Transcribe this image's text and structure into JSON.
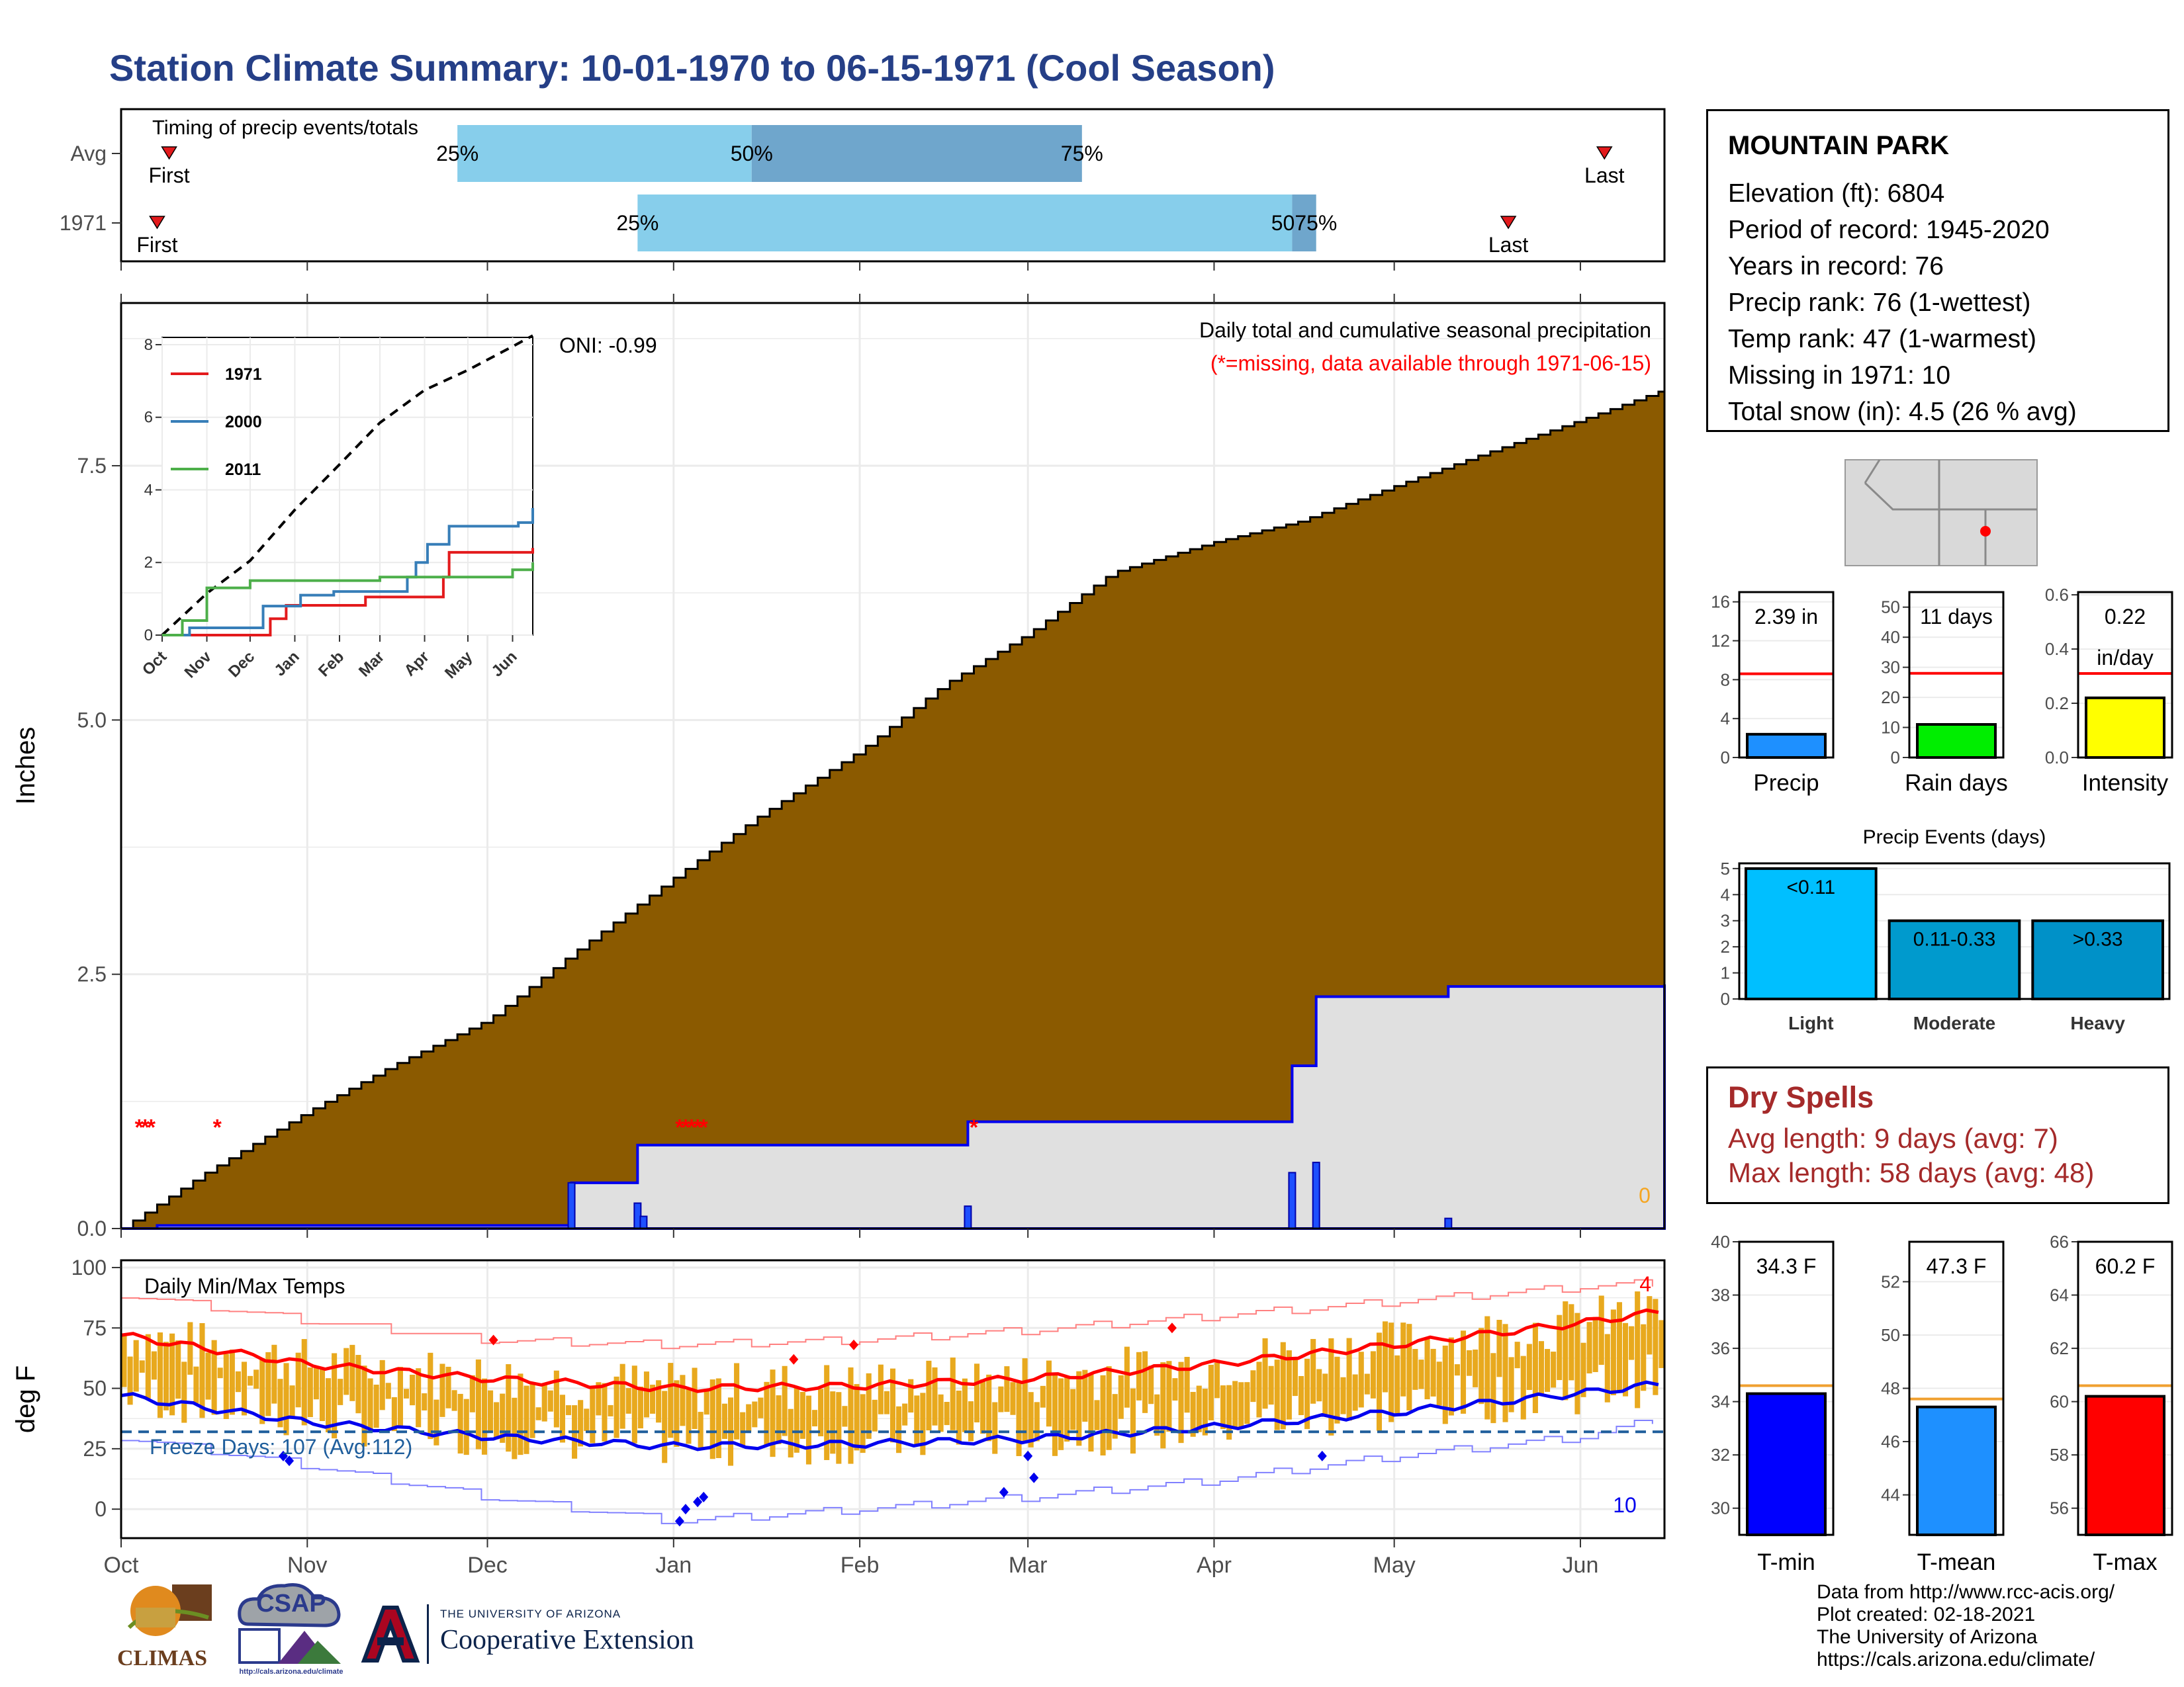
{
  "title": "Station Climate Summary: 10-01-1970 to 06-15-1971 (Cool Season)",
  "station": {
    "name": "MOUNTAIN PARK",
    "lines": [
      "Elevation (ft): 6804",
      "Period of record: 1945-2020",
      "Years in record: 76",
      "Precip rank: 76 (1-wettest)",
      "Temp rank: 47 (1-warmest)",
      "Missing in 1971: 10",
      "Total snow (in): 4.5 (26 % avg)"
    ]
  },
  "dry_spells": {
    "title": "Dry Spells",
    "avg_length": "Avg length: 9 days (avg: 7)",
    "max_length": "Max length: 58 days (avg: 48)"
  },
  "credits": [
    "Data from http://www.rcc-acis.org/",
    "Plot created: 02-18-2021",
    "The University of Arizona",
    "https://cals.arizona.edu/climate/"
  ],
  "logos": {
    "climas": "CLIMAS",
    "csap": "CSAP",
    "csap_url": "http://cals.arizona.edu/climate",
    "ua_small": "THE UNIVERSITY OF ARIZONA",
    "ua_big": "Cooperative Extension"
  },
  "chart_data": [
    {
      "id": "timing",
      "type": "bar",
      "title": "Timing of precip events/totals",
      "rows": [
        {
          "label": "Avg",
          "first": "Oct 9",
          "p25": "Nov 26",
          "p50": "Jan 14",
          "p75": "Mar 10",
          "last": "Jun 5"
        },
        {
          "label": "1971",
          "first": "Oct 7",
          "p25": "Dec 26",
          "p50": "Apr 14",
          "p75": "Apr 18",
          "last": "May 20"
        }
      ],
      "text": {
        "first": "First",
        "last": "Last",
        "p25": "25%",
        "p50": "50%",
        "p75": "75%",
        "p5075": "5075%"
      },
      "colors": {
        "light": "#87ceeb",
        "dark": "#6fa6cc",
        "marker": "#e31a1c"
      }
    },
    {
      "id": "precip",
      "type": "area",
      "ylabel": "Inches",
      "yticks": [
        "0.0",
        "2.5",
        "5.0",
        "7.5"
      ],
      "ylim": [
        0,
        9.1
      ],
      "xticks": [
        "Oct",
        "Nov",
        "Dec",
        "Jan",
        "Feb",
        "Mar",
        "Apr",
        "May",
        "Jun"
      ],
      "annotation": "Daily total and cumulative seasonal precipitation",
      "missing_note": "(*=missing, data available through 1971-06-15)",
      "oni": "ONI: -0.99",
      "corner_value": "0",
      "average_cumulative": {
        "x": [
          "Oct 1",
          "Oct 15",
          "Nov 1",
          "Nov 15",
          "Dec 1",
          "Dec 15",
          "Jan 1",
          "Jan 15",
          "Feb 1",
          "Feb 15",
          "Mar 1",
          "Mar 15",
          "Apr 1",
          "Apr 15",
          "May 1",
          "May 15",
          "Jun 1",
          "Jun 15"
        ],
        "y": [
          0,
          0.55,
          1.15,
          1.6,
          2.05,
          2.7,
          3.45,
          4.05,
          4.7,
          5.35,
          5.85,
          6.45,
          6.75,
          6.95,
          7.3,
          7.6,
          7.95,
          8.25
        ]
      },
      "observed_cumulative": {
        "x": [
          "Oct 1",
          "Oct 7",
          "Dec 15",
          "Dec 26",
          "Feb 19",
          "Apr 14",
          "Apr 18",
          "May 10",
          "Jun 15"
        ],
        "y": [
          0,
          0.03,
          0.45,
          0.82,
          1.05,
          1.6,
          2.28,
          2.38,
          2.4
        ]
      },
      "daily_bars": [
        {
          "x": "Dec 15",
          "y": 0.45
        },
        {
          "x": "Dec 26",
          "y": 0.25
        },
        {
          "x": "Dec 27",
          "y": 0.12
        },
        {
          "x": "Feb 19",
          "y": 0.22
        },
        {
          "x": "Apr 14",
          "y": 0.55
        },
        {
          "x": "Apr 18",
          "y": 0.65
        },
        {
          "x": "May 10",
          "y": 0.1
        }
      ],
      "missing_dates": [
        "Oct 4",
        "Oct 5",
        "Oct 6",
        "Oct 17",
        "Jan 2",
        "Jan 3",
        "Jan 4",
        "Jan 5",
        "Jan 6",
        "Feb 20"
      ],
      "colors": {
        "avg_fill": "#8b5a00",
        "obs_fill": "#e0e0e0",
        "obs_line": "#0000ee",
        "missing": "#ff0000"
      }
    },
    {
      "id": "inset",
      "type": "line",
      "yticks": [
        "0",
        "2",
        "4",
        "6",
        "8"
      ],
      "ylim": [
        0,
        8.2
      ],
      "xticks": [
        "Oct",
        "Nov",
        "Dec",
        "Jan",
        "Feb",
        "Mar",
        "Apr",
        "May",
        "Jun"
      ],
      "series": [
        {
          "name": "1971",
          "color": "#e31a1c",
          "x": [
            "Oct 1",
            "Dec 15",
            "Dec 26",
            "Feb 19",
            "Apr 14",
            "Apr 18",
            "Jun 15"
          ],
          "y": [
            0,
            0.45,
            0.82,
            1.05,
            1.6,
            2.28,
            2.4
          ]
        },
        {
          "name": "2000",
          "color": "#377eb8",
          "x": [
            "Oct 1",
            "Oct 20",
            "Dec 10",
            "Jan 5",
            "Jan 28",
            "Mar 20",
            "Mar 26",
            "Apr 3",
            "Apr 18",
            "Jun 5",
            "Jun 15"
          ],
          "y": [
            0,
            0.2,
            0.8,
            1.1,
            1.2,
            1.6,
            2.0,
            2.5,
            3.0,
            3.1,
            3.5
          ]
        },
        {
          "name": "2011",
          "color": "#4daf4a",
          "x": [
            "Oct 1",
            "Oct 15",
            "Nov 1",
            "Dec 1",
            "Jan 1",
            "Feb 1",
            "Mar 1",
            "Apr 1",
            "May 1",
            "Jun 1",
            "Jun 15"
          ],
          "y": [
            0,
            0.4,
            1.3,
            1.5,
            1.5,
            1.5,
            1.6,
            1.6,
            1.6,
            1.8,
            2.0
          ]
        }
      ],
      "average": {
        "x": [
          "Oct 1",
          "Nov 1",
          "Dec 1",
          "Jan 1",
          "Feb 1",
          "Mar 1",
          "Apr 1",
          "May 1",
          "Jun 1",
          "Jun 15"
        ],
        "y": [
          0,
          1.15,
          2.05,
          3.45,
          4.7,
          5.85,
          6.75,
          7.3,
          7.95,
          8.25
        ]
      }
    },
    {
      "id": "temps",
      "type": "line",
      "title": "Daily Min/Max Temps",
      "ylabel": "deg F",
      "yticks": [
        "0",
        "25",
        "50",
        "75",
        "100"
      ],
      "ylim": [
        -12,
        103
      ],
      "xticks": [
        "Oct",
        "Nov",
        "Dec",
        "Jan",
        "Feb",
        "Mar",
        "Apr",
        "May",
        "Jun"
      ],
      "freeze_label": "Freeze Days: 107 (Avg:112)",
      "freeze_line": 32,
      "count_high": "4",
      "count_low": "10",
      "normal_max": {
        "x": [
          "Oct 1",
          "Nov 1",
          "Dec 1",
          "Jan 1",
          "Feb 1",
          "Mar 1",
          "Apr 1",
          "May 1",
          "Jun 1",
          "Jun 15"
        ],
        "y": [
          72,
          60,
          54,
          50,
          51,
          54,
          60,
          68,
          77,
          82
        ]
      },
      "normal_min": {
        "x": [
          "Oct 1",
          "Nov 1",
          "Dec 1",
          "Jan 1",
          "Feb 1",
          "Mar 1",
          "Apr 1",
          "May 1",
          "Jun 1",
          "Jun 15"
        ],
        "y": [
          47,
          36,
          30,
          26,
          27,
          29,
          34,
          40,
          48,
          52
        ]
      },
      "record_max": {
        "x": [
          "Oct 1",
          "Nov 1",
          "Dec 1",
          "Jan 1",
          "Feb 1",
          "Mar 1",
          "Apr 1",
          "May 1",
          "Jun 1",
          "Jun 15"
        ],
        "y": [
          89,
          78,
          70,
          68,
          70,
          74,
          80,
          86,
          92,
          94
        ]
      },
      "record_min": {
        "x": [
          "Oct 1",
          "Nov 1",
          "Dec 1",
          "Jan 1",
          "Feb 1",
          "Mar 1",
          "Apr 1",
          "May 1",
          "Jun 1",
          "Jun 15"
        ],
        "y": [
          30,
          18,
          5,
          -5,
          0,
          5,
          12,
          22,
          30,
          38
        ]
      },
      "daily_max_range": [
        50,
        80
      ],
      "daily_min_range": [
        20,
        50
      ],
      "record_high_days": [
        {
          "x": "Dec 2",
          "y": 70
        },
        {
          "x": "Jan 21",
          "y": 62
        },
        {
          "x": "Jan 31",
          "y": 68
        },
        {
          "x": "Mar 25",
          "y": 75
        }
      ],
      "record_low_days": [
        {
          "x": "Oct 28",
          "y": 22
        },
        {
          "x": "Oct 29",
          "y": 20
        },
        {
          "x": "Jan 2",
          "y": -5
        },
        {
          "x": "Jan 3",
          "y": 0
        },
        {
          "x": "Jan 5",
          "y": 3
        },
        {
          "x": "Jan 6",
          "y": 5
        },
        {
          "x": "Feb 25",
          "y": 7
        },
        {
          "x": "Mar 1",
          "y": 22
        },
        {
          "x": "Mar 2",
          "y": 13
        },
        {
          "x": "Apr 19",
          "y": 22
        }
      ],
      "colors": {
        "bar": "#e8a91e",
        "max": "#ff0000",
        "min": "#0000ee",
        "freeze": "#1f5e9c"
      }
    },
    {
      "id": "precip-totals",
      "type": "bar",
      "panels": [
        {
          "name": "Precip",
          "value": 2.39,
          "label": "2.39 in",
          "avg": 8.6,
          "ylim": [
            0,
            17
          ],
          "yticks": [
            "0",
            "4",
            "8",
            "12",
            "16"
          ],
          "color": "#1e90ff"
        },
        {
          "name": "Rain days",
          "value": 11,
          "label": "11 days",
          "avg": 28,
          "ylim": [
            0,
            55
          ],
          "yticks": [
            "0",
            "10",
            "20",
            "30",
            "40",
            "50"
          ],
          "color": "#00ee00"
        },
        {
          "name": "Intensity",
          "value": 0.22,
          "label": "0.22\nin/day",
          "avg": 0.31,
          "ylim": [
            0,
            0.61
          ],
          "yticks": [
            "0.0",
            "0.2",
            "0.4",
            "0.6"
          ],
          "color": "#ffff00"
        }
      ]
    },
    {
      "id": "precip-events",
      "type": "bar",
      "title": "Precip Events (days)",
      "categories": [
        "Light",
        "Moderate",
        "Heavy"
      ],
      "values": [
        5,
        3,
        3
      ],
      "bar_labels": [
        "<0.11",
        "0.11-0.33",
        ">0.33"
      ],
      "yticks": [
        "0",
        "1",
        "2",
        "3",
        "4",
        "5"
      ],
      "ylim": [
        0,
        5.2
      ],
      "colors": [
        "#00bfff",
        "#009acd",
        "#0091c8"
      ]
    },
    {
      "id": "temp-totals",
      "type": "bar",
      "panels": [
        {
          "name": "T-min",
          "value": 34.3,
          "label": "34.3 F",
          "avg": 34.6,
          "ylim": [
            29,
            40
          ],
          "yticks": [
            "30",
            "32",
            "34",
            "36",
            "38",
            "40"
          ],
          "color": "#0000ff"
        },
        {
          "name": "T-mean",
          "value": 47.3,
          "label": "47.3 F",
          "avg": 47.6,
          "ylim": [
            42.5,
            53.5
          ],
          "yticks": [
            "44",
            "46",
            "48",
            "50",
            "52"
          ],
          "color": "#1e90ff"
        },
        {
          "name": "T-max",
          "value": 60.2,
          "label": "60.2 F",
          "avg": 60.6,
          "ylim": [
            55,
            66
          ],
          "yticks": [
            "56",
            "58",
            "60",
            "62",
            "64",
            "66"
          ],
          "color": "#ff0000"
        }
      ]
    }
  ]
}
